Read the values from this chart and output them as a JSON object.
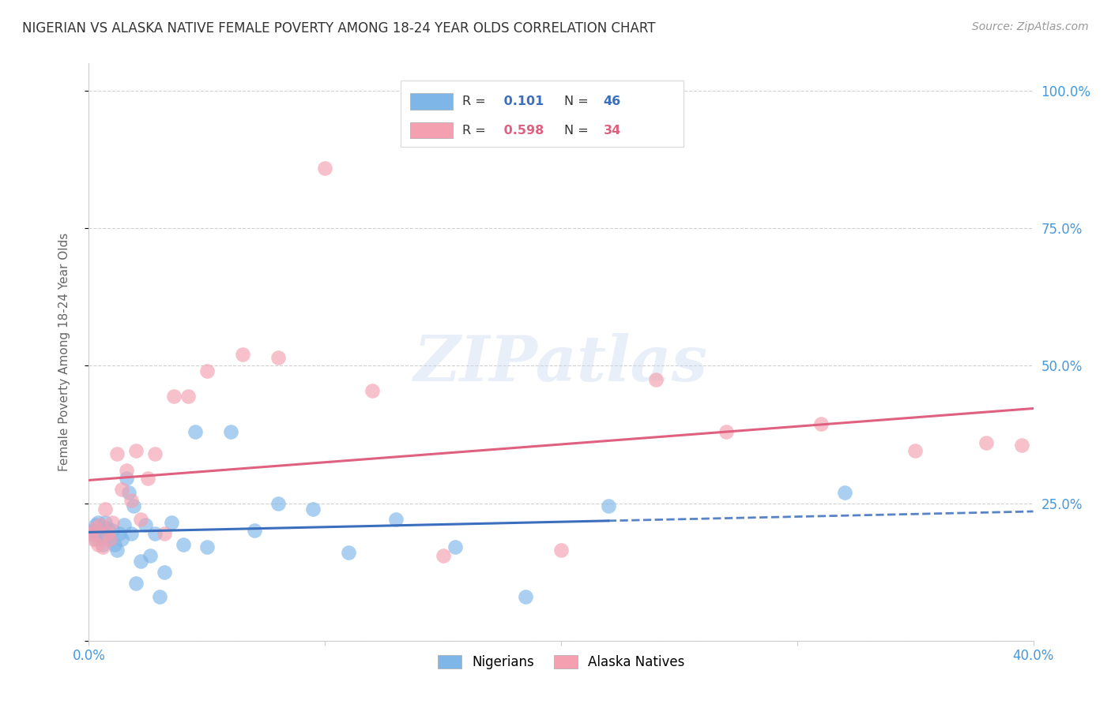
{
  "title": "NIGERIAN VS ALASKA NATIVE FEMALE POVERTY AMONG 18-24 YEAR OLDS CORRELATION CHART",
  "source": "Source: ZipAtlas.com",
  "ylabel": "Female Poverty Among 18-24 Year Olds",
  "xlim": [
    0.0,
    0.4
  ],
  "ylim": [
    0.0,
    1.05
  ],
  "yticks": [
    0.0,
    0.25,
    0.5,
    0.75,
    1.0
  ],
  "ytick_labels": [
    "",
    "25.0%",
    "50.0%",
    "75.0%",
    "100.0%"
  ],
  "xticks": [
    0.0,
    0.1,
    0.2,
    0.3,
    0.4
  ],
  "xtick_labels": [
    "0.0%",
    "",
    "",
    "",
    "40.0%"
  ],
  "nigerians_color": "#7EB6E8",
  "alaska_color": "#F4A0B0",
  "trend_blue": "#3B6FBE",
  "trend_pink": "#E06080",
  "nigerians_r": 0.101,
  "nigerians_n": 46,
  "alaska_r": 0.598,
  "alaska_n": 34,
  "background_color": "#FFFFFF",
  "grid_color": "#CCCCCC",
  "title_color": "#333333",
  "source_color": "#999999",
  "axis_label_color": "#666666",
  "tick_color": "#4499DD",
  "watermark": "ZIPatlas",
  "nigerians_x": [
    0.001,
    0.002,
    0.003,
    0.003,
    0.004,
    0.004,
    0.005,
    0.005,
    0.006,
    0.006,
    0.007,
    0.007,
    0.008,
    0.008,
    0.009,
    0.01,
    0.011,
    0.012,
    0.013,
    0.014,
    0.015,
    0.016,
    0.017,
    0.018,
    0.019,
    0.02,
    0.022,
    0.024,
    0.026,
    0.028,
    0.03,
    0.032,
    0.035,
    0.04,
    0.045,
    0.05,
    0.06,
    0.07,
    0.08,
    0.095,
    0.11,
    0.13,
    0.155,
    0.185,
    0.22,
    0.32
  ],
  "nigerians_y": [
    0.195,
    0.2,
    0.21,
    0.185,
    0.195,
    0.215,
    0.2,
    0.185,
    0.205,
    0.175,
    0.195,
    0.215,
    0.19,
    0.205,
    0.185,
    0.2,
    0.175,
    0.165,
    0.195,
    0.185,
    0.21,
    0.295,
    0.27,
    0.195,
    0.245,
    0.105,
    0.145,
    0.21,
    0.155,
    0.195,
    0.08,
    0.125,
    0.215,
    0.175,
    0.38,
    0.17,
    0.38,
    0.2,
    0.25,
    0.24,
    0.16,
    0.22,
    0.17,
    0.08,
    0.245,
    0.27
  ],
  "alaska_x": [
    0.001,
    0.002,
    0.003,
    0.004,
    0.005,
    0.006,
    0.007,
    0.008,
    0.009,
    0.01,
    0.012,
    0.014,
    0.016,
    0.018,
    0.02,
    0.022,
    0.025,
    0.028,
    0.032,
    0.036,
    0.042,
    0.05,
    0.065,
    0.08,
    0.1,
    0.12,
    0.15,
    0.2,
    0.24,
    0.27,
    0.31,
    0.35,
    0.38,
    0.395
  ],
  "alaska_y": [
    0.195,
    0.185,
    0.205,
    0.175,
    0.21,
    0.17,
    0.24,
    0.195,
    0.185,
    0.215,
    0.34,
    0.275,
    0.31,
    0.255,
    0.345,
    0.22,
    0.295,
    0.34,
    0.195,
    0.445,
    0.445,
    0.49,
    0.52,
    0.515,
    0.86,
    0.455,
    0.155,
    0.165,
    0.475,
    0.38,
    0.395,
    0.345,
    0.36,
    0.355
  ]
}
